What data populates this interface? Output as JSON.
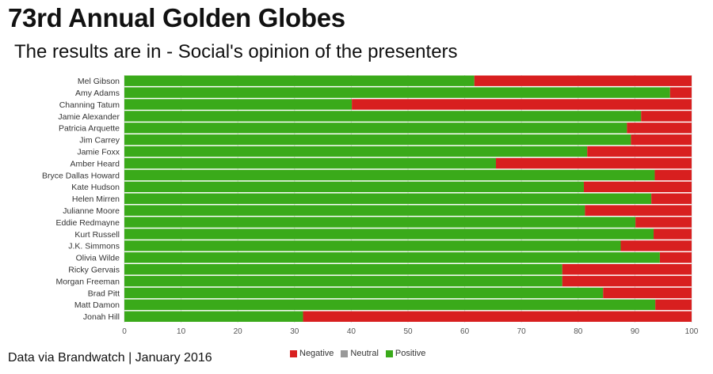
{
  "title": "73rd Annual Golden Globes",
  "subtitle": "The results are in - Social's opinion of the presenters",
  "footer": "Data via Brandwatch | January 2016",
  "colors": {
    "positive": "#3aaa1a",
    "neutral": "#999999",
    "negative": "#d81f1f",
    "gridline": "#d9d9d9",
    "axis_text": "#555555"
  },
  "legend": [
    {
      "key": "negative",
      "label": "Negative"
    },
    {
      "key": "neutral",
      "label": "Neutral"
    },
    {
      "key": "positive",
      "label": "Positive"
    }
  ],
  "chart_data": {
    "type": "bar",
    "orientation": "horizontal",
    "stacked": true,
    "categories": [
      "Mel Gibson",
      "Amy Adams",
      "Channing Tatum",
      "Jamie Alexander",
      "Patricia Arquette",
      "Jim Carrey",
      "Jamie Foxx",
      "Amber Heard",
      "Bryce Dallas Howard",
      "Kate Hudson",
      "Helen Mirren",
      "Julianne Moore",
      "Eddie Redmayne",
      "Kurt Russell",
      "J.K. Simmons",
      "Olivia Wilde",
      "Ricky Gervais",
      "Morgan Freeman",
      "Brad Pitt",
      "Matt Damon",
      "Jonah Hill"
    ],
    "series": [
      {
        "name": "Positive",
        "values": [
          61.7,
          96.2,
          40.1,
          91.1,
          88.6,
          89.3,
          81.6,
          65.5,
          93.5,
          81.0,
          92.9,
          81.2,
          90.1,
          93.3,
          87.5,
          94.4,
          77.2,
          77.2,
          84.4,
          93.6,
          31.5
        ]
      },
      {
        "name": "Neutral",
        "values": [
          0,
          0,
          0,
          0,
          0,
          0,
          0,
          0,
          0,
          0,
          0,
          0,
          0,
          0,
          0,
          0,
          0,
          0,
          0,
          0,
          0
        ]
      },
      {
        "name": "Negative",
        "values": [
          38.3,
          3.8,
          59.9,
          8.9,
          11.4,
          10.7,
          18.4,
          34.5,
          6.5,
          19.0,
          7.1,
          18.8,
          9.9,
          6.7,
          12.5,
          5.6,
          22.8,
          22.8,
          15.6,
          6.4,
          68.5
        ]
      }
    ],
    "xlim": [
      0,
      100
    ],
    "xticks": [
      0,
      10,
      20,
      30,
      40,
      50,
      60,
      70,
      80,
      90,
      100
    ],
    "grid": true,
    "legend_position": "bottom"
  }
}
